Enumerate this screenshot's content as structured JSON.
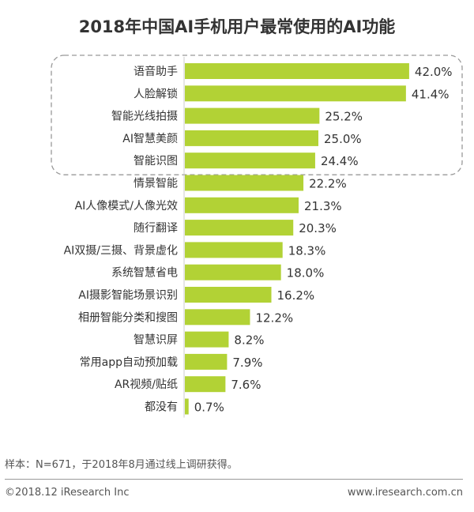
{
  "chart_data": {
    "type": "bar",
    "orientation": "horizontal",
    "title": "2018年中国AI手机用户最常使用的AI功能",
    "categories": [
      "语音助手",
      "人脸解锁",
      "智能光线拍摄",
      "AI智慧美颜",
      "智能识图",
      "情景智能",
      "AI人像模式/人像光效",
      "随行翻译",
      "AI双摄/三摄、背景虚化",
      "系统智慧省电",
      "AI摄影智能场景识别",
      "相册智能分类和搜图",
      "智慧识屏",
      "常用app自动预加载",
      "AR视频/贴纸",
      "都没有"
    ],
    "values": [
      42.0,
      41.4,
      25.2,
      25.0,
      24.4,
      22.2,
      21.3,
      20.3,
      18.3,
      18.0,
      16.2,
      12.2,
      8.2,
      7.9,
      7.6,
      0.7
    ],
    "labels": [
      "42.0%",
      "41.4%",
      "25.2%",
      "25.0%",
      "24.4%",
      "22.2%",
      "21.3%",
      "20.3%",
      "18.3%",
      "18.0%",
      "16.2%",
      "12.2%",
      "8.2%",
      "7.9%",
      "7.6%",
      "0.7%"
    ],
    "highlighted_top_n": 5,
    "xlim": [
      0,
      45
    ],
    "bar_color": "#b2d235"
  },
  "footer": {
    "note": "样本：N=671，于2018年8月通过线上调研获得。",
    "copyright": "©2018.12 iResearch Inc",
    "website": "www.iresearch.com.cn"
  }
}
